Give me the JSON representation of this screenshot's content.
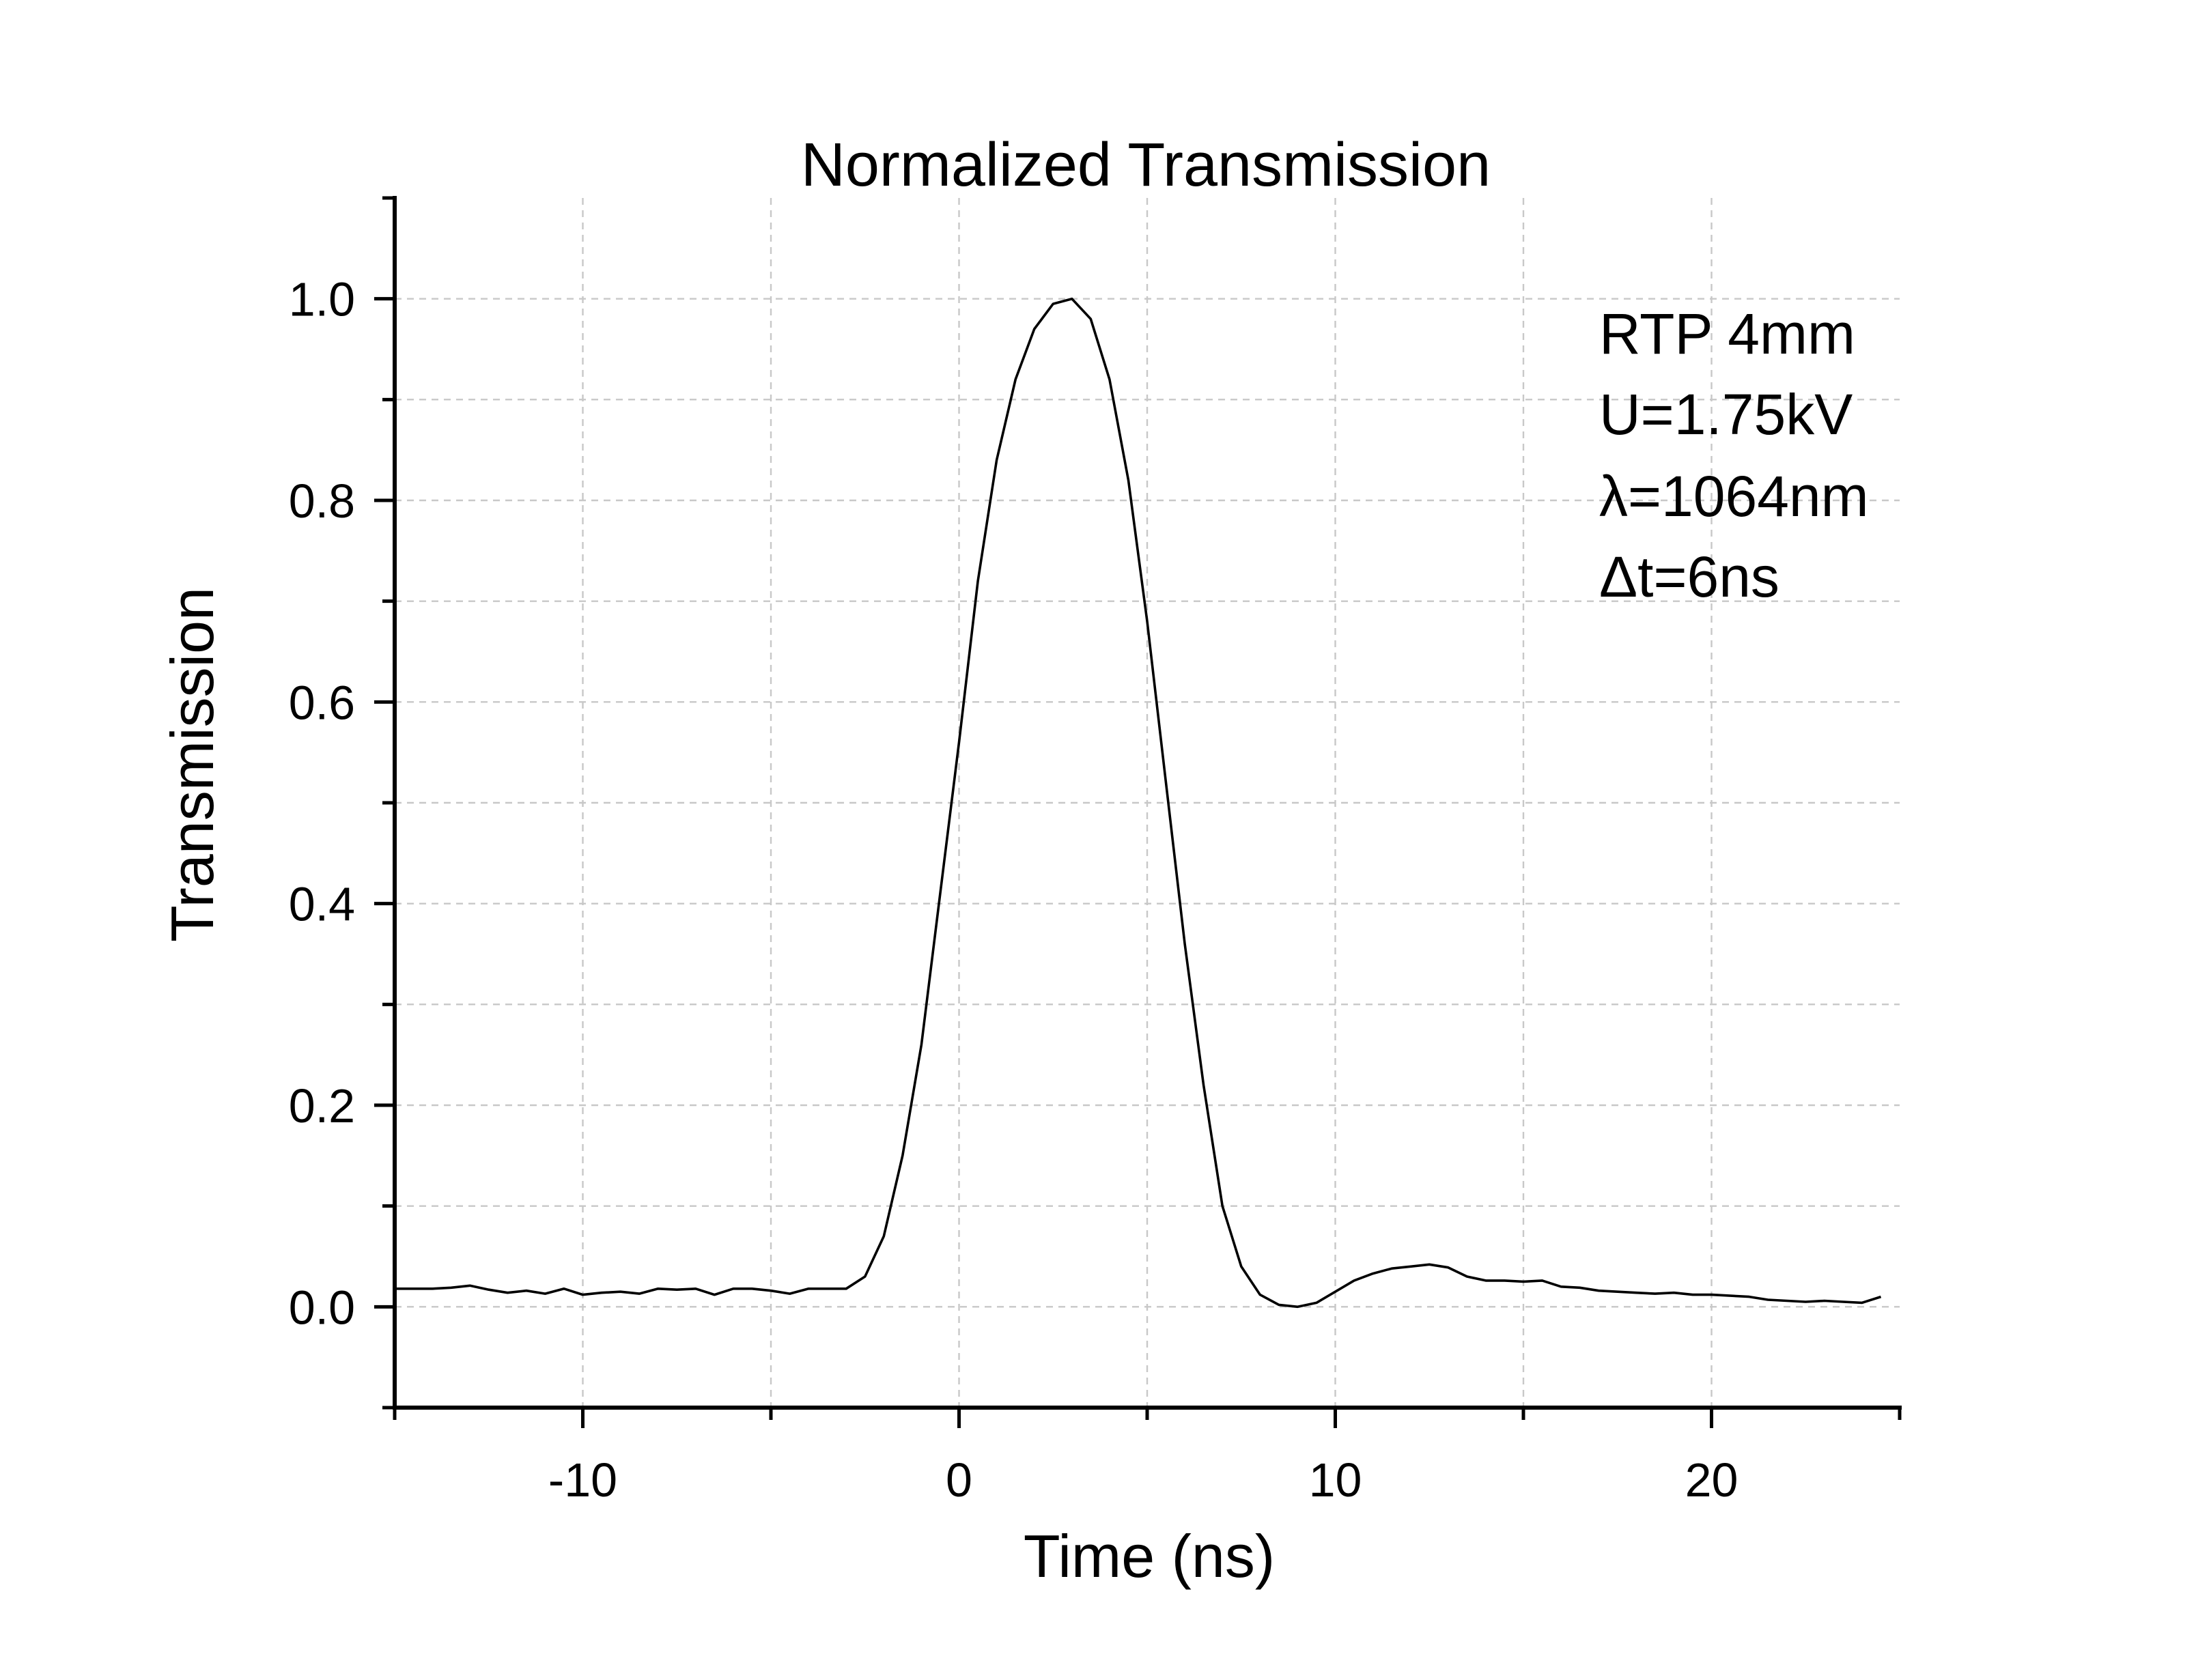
{
  "chart_data": {
    "type": "line",
    "title": "Normalized Transmission",
    "xlabel": "Time (ns)",
    "ylabel": "Transmission",
    "xlim": [
      -15,
      25
    ],
    "ylim": [
      -0.1,
      1.1
    ],
    "x_ticks": [
      -10,
      0,
      10,
      20
    ],
    "x_tick_labels": [
      "-10",
      "0",
      "10",
      "20"
    ],
    "x_minor_ticks": [
      -15,
      -5,
      5,
      15,
      25
    ],
    "y_ticks": [
      0.0,
      0.2,
      0.4,
      0.6,
      0.8,
      1.0
    ],
    "y_tick_labels": [
      "0.0",
      "0.2",
      "0.4",
      "0.6",
      "0.8",
      "1.0"
    ],
    "y_minor_ticks": [
      -0.1,
      0.1,
      0.3,
      0.5,
      0.7,
      0.9,
      1.1
    ],
    "grid": true,
    "legend": "none",
    "annotations": [
      "RTP 4mm",
      "U=1.75kV",
      "λ=1064nm",
      "Δt=6ns"
    ],
    "line_color": "#000000",
    "series": [
      {
        "x": [
          -15,
          -14.5,
          -14,
          -13.5,
          -13,
          -12.5,
          -12,
          -11.5,
          -11,
          -10.5,
          -10,
          -9.5,
          -9,
          -8.5,
          -8,
          -7.5,
          -7,
          -6.5,
          -6,
          -5.5,
          -5,
          -4.5,
          -4,
          -3.5,
          -3,
          -2.5,
          -2,
          -1.5,
          -1,
          -0.5,
          0,
          0.5,
          1,
          1.5,
          2,
          2.5,
          3,
          3.5,
          4,
          4.5,
          5,
          5.5,
          6,
          6.5,
          7,
          7.5,
          8,
          8.5,
          9,
          9.5,
          10,
          10.5,
          11,
          11.5,
          12,
          12.5,
          13,
          13.5,
          14,
          14.5,
          15,
          15.5,
          16,
          16.5,
          17,
          17.5,
          18,
          18.5,
          19,
          19.5,
          20,
          20.5,
          21,
          21.5,
          22,
          22.5,
          23,
          23.5,
          24,
          24.5
        ],
        "values": [
          0.018,
          0.018,
          0.018,
          0.019,
          0.021,
          0.017,
          0.014,
          0.016,
          0.013,
          0.018,
          0.012,
          0.014,
          0.015,
          0.013,
          0.018,
          0.017,
          0.018,
          0.012,
          0.018,
          0.018,
          0.016,
          0.013,
          0.018,
          0.018,
          0.018,
          0.03,
          0.07,
          0.15,
          0.26,
          0.41,
          0.56,
          0.72,
          0.84,
          0.92,
          0.97,
          0.995,
          1.0,
          0.98,
          0.92,
          0.82,
          0.68,
          0.52,
          0.36,
          0.22,
          0.1,
          0.04,
          0.012,
          0.002,
          0.0,
          0.004,
          0.015,
          0.026,
          0.033,
          0.038,
          0.04,
          0.042,
          0.039,
          0.03,
          0.026,
          0.026,
          0.025,
          0.026,
          0.02,
          0.019,
          0.016,
          0.015,
          0.014,
          0.013,
          0.014,
          0.012,
          0.012,
          0.011,
          0.01,
          0.007,
          0.006,
          0.005,
          0.006,
          0.005,
          0.004,
          0.01
        ]
      }
    ]
  }
}
